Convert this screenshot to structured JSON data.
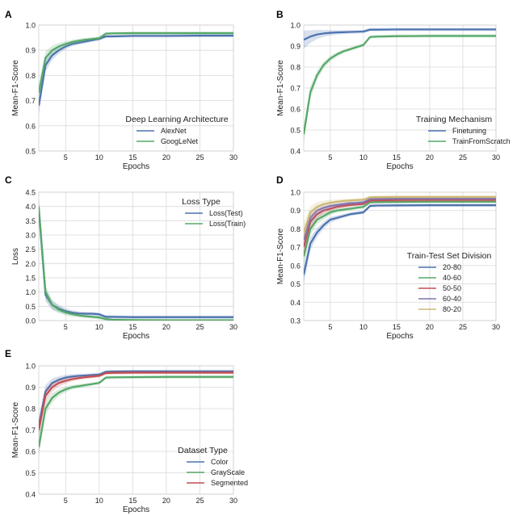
{
  "figure_title": "",
  "colors": {
    "blue": "#4c72b0",
    "green": "#55a868",
    "red": "#c44e52",
    "purple": "#8172b2",
    "gold": "#ccb974",
    "panel_bg": "#ffffff",
    "grid": "#d9d9d9",
    "axis_text": "#222222"
  },
  "chart_data": [
    {
      "panel_label": "A",
      "type": "line",
      "xlabel": "Epochs",
      "ylabel": "Mean-F1-Score",
      "xlim": [
        1,
        30
      ],
      "ylim": [
        0.5,
        1.0
      ],
      "xticks": [
        5,
        10,
        15,
        20,
        25,
        30
      ],
      "yticks": [
        0.5,
        0.6,
        0.7,
        0.8,
        0.9,
        1.0
      ],
      "grid": true,
      "legend_title": "Deep Learning Architecture",
      "legend_position": "bottom-right",
      "series": [
        {
          "name": "AlexNet",
          "color": "blue",
          "x": [
            1,
            2,
            3,
            4,
            5,
            6,
            7,
            8,
            9,
            10,
            11,
            12,
            15,
            20,
            25,
            30
          ],
          "y": [
            0.68,
            0.84,
            0.88,
            0.9,
            0.915,
            0.925,
            0.93,
            0.935,
            0.94,
            0.945,
            0.955,
            0.955,
            0.957,
            0.957,
            0.958,
            0.958
          ]
        },
        {
          "name": "GoogLeNet",
          "color": "green",
          "x": [
            1,
            2,
            3,
            4,
            5,
            6,
            7,
            8,
            9,
            10,
            11,
            12,
            15,
            20,
            25,
            30
          ],
          "y": [
            0.73,
            0.87,
            0.9,
            0.915,
            0.925,
            0.933,
            0.938,
            0.942,
            0.945,
            0.948,
            0.966,
            0.967,
            0.968,
            0.968,
            0.968,
            0.968
          ]
        }
      ]
    },
    {
      "panel_label": "B",
      "type": "line",
      "xlabel": "Epochs",
      "ylabel": "Mean-F1-Score",
      "xlim": [
        1,
        30
      ],
      "ylim": [
        0.4,
        1.0
      ],
      "xticks": [
        5,
        10,
        15,
        20,
        25,
        30
      ],
      "yticks": [
        0.4,
        0.5,
        0.6,
        0.7,
        0.8,
        0.9,
        1.0
      ],
      "grid": true,
      "legend_title": "Training Mechanism",
      "legend_position": "bottom-right",
      "series": [
        {
          "name": "Finetuning",
          "color": "blue",
          "x": [
            1,
            2,
            3,
            4,
            5,
            6,
            7,
            8,
            9,
            10,
            11,
            12,
            15,
            20,
            25,
            30
          ],
          "y": [
            0.93,
            0.945,
            0.955,
            0.96,
            0.963,
            0.965,
            0.966,
            0.967,
            0.968,
            0.969,
            0.978,
            0.978,
            0.979,
            0.979,
            0.979,
            0.979
          ]
        },
        {
          "name": "TrainFromScratch",
          "color": "green",
          "x": [
            1,
            2,
            3,
            4,
            5,
            6,
            7,
            8,
            9,
            10,
            11,
            12,
            15,
            20,
            25,
            30
          ],
          "y": [
            0.48,
            0.68,
            0.76,
            0.81,
            0.84,
            0.86,
            0.875,
            0.885,
            0.895,
            0.905,
            0.943,
            0.945,
            0.947,
            0.948,
            0.948,
            0.948
          ]
        }
      ]
    },
    {
      "panel_label": "C",
      "type": "line",
      "xlabel": "Epochs",
      "ylabel": "Loss",
      "xlim": [
        1,
        30
      ],
      "ylim": [
        0.0,
        4.5
      ],
      "xticks": [
        5,
        10,
        15,
        20,
        25,
        30
      ],
      "yticks": [
        0.0,
        0.5,
        1.0,
        1.5,
        2.0,
        2.5,
        3.0,
        3.5,
        4.0,
        4.5
      ],
      "grid": true,
      "legend_title": "Loss Type",
      "legend_position": "top-right",
      "series": [
        {
          "name": "Loss(Test)",
          "color": "blue",
          "x": [
            1,
            2,
            3,
            4,
            5,
            6,
            7,
            8,
            9,
            10,
            11,
            12,
            15,
            20,
            25,
            30
          ],
          "y": [
            3.9,
            0.9,
            0.55,
            0.42,
            0.33,
            0.28,
            0.25,
            0.24,
            0.24,
            0.22,
            0.13,
            0.13,
            0.12,
            0.12,
            0.12,
            0.12
          ]
        },
        {
          "name": "Loss(Train)",
          "color": "green",
          "x": [
            1,
            2,
            3,
            4,
            5,
            6,
            7,
            8,
            9,
            10,
            11,
            12,
            15,
            20,
            25,
            30
          ],
          "y": [
            4.0,
            1.0,
            0.55,
            0.38,
            0.28,
            0.22,
            0.18,
            0.15,
            0.13,
            0.11,
            0.05,
            0.03,
            0.02,
            0.01,
            0.01,
            0.01
          ]
        }
      ]
    },
    {
      "panel_label": "D",
      "type": "line",
      "xlabel": "Epochs",
      "ylabel": "Mean-F1-Score",
      "xlim": [
        1,
        30
      ],
      "ylim": [
        0.3,
        1.0
      ],
      "xticks": [
        5,
        10,
        15,
        20,
        25,
        30
      ],
      "yticks": [
        0.3,
        0.4,
        0.5,
        0.6,
        0.7,
        0.8,
        0.9,
        1.0
      ],
      "grid": true,
      "legend_title": "Train-Test Set Division",
      "legend_position": "center-right",
      "series": [
        {
          "name": "20-80",
          "color": "blue",
          "x": [
            1,
            2,
            3,
            4,
            5,
            6,
            7,
            8,
            9,
            10,
            11,
            12,
            15,
            20,
            25,
            30
          ],
          "y": [
            0.55,
            0.72,
            0.78,
            0.82,
            0.85,
            0.86,
            0.87,
            0.88,
            0.885,
            0.89,
            0.925,
            0.927,
            0.928,
            0.929,
            0.929,
            0.929
          ]
        },
        {
          "name": "40-60",
          "color": "green",
          "x": [
            1,
            2,
            3,
            4,
            5,
            6,
            7,
            8,
            9,
            10,
            11,
            12,
            15,
            20,
            25,
            30
          ],
          "y": [
            0.65,
            0.8,
            0.85,
            0.87,
            0.89,
            0.9,
            0.905,
            0.91,
            0.915,
            0.92,
            0.945,
            0.946,
            0.947,
            0.948,
            0.948,
            0.948
          ]
        },
        {
          "name": "50-50",
          "color": "red",
          "x": [
            1,
            2,
            3,
            4,
            5,
            6,
            7,
            8,
            9,
            10,
            11,
            12,
            15,
            20,
            25,
            30
          ],
          "y": [
            0.7,
            0.84,
            0.88,
            0.9,
            0.91,
            0.92,
            0.925,
            0.93,
            0.933,
            0.936,
            0.955,
            0.956,
            0.957,
            0.958,
            0.958,
            0.958
          ]
        },
        {
          "name": "60-40",
          "color": "purple",
          "x": [
            1,
            2,
            3,
            4,
            5,
            6,
            7,
            8,
            9,
            10,
            11,
            12,
            15,
            20,
            25,
            30
          ],
          "y": [
            0.74,
            0.86,
            0.9,
            0.915,
            0.925,
            0.93,
            0.935,
            0.94,
            0.942,
            0.945,
            0.963,
            0.964,
            0.965,
            0.965,
            0.965,
            0.965
          ]
        },
        {
          "name": "80-20",
          "color": "gold",
          "x": [
            1,
            2,
            3,
            4,
            5,
            6,
            7,
            8,
            9,
            10,
            11,
            12,
            15,
            20,
            25,
            30
          ],
          "y": [
            0.78,
            0.89,
            0.92,
            0.935,
            0.943,
            0.948,
            0.952,
            0.955,
            0.957,
            0.959,
            0.972,
            0.973,
            0.974,
            0.974,
            0.974,
            0.974
          ]
        }
      ]
    },
    {
      "panel_label": "E",
      "type": "line",
      "xlabel": "Epochs",
      "ylabel": "Mean-F1-Score",
      "xlim": [
        1,
        30
      ],
      "ylim": [
        0.4,
        1.0
      ],
      "xticks": [
        5,
        10,
        15,
        20,
        25,
        30
      ],
      "yticks": [
        0.4,
        0.5,
        0.6,
        0.7,
        0.8,
        0.9,
        1.0
      ],
      "grid": true,
      "legend_title": "Dataset Type",
      "legend_position": "bottom-right",
      "series": [
        {
          "name": "Color",
          "color": "blue",
          "x": [
            1,
            2,
            3,
            4,
            5,
            6,
            7,
            8,
            9,
            10,
            11,
            12,
            15,
            20,
            25,
            30
          ],
          "y": [
            0.72,
            0.88,
            0.92,
            0.935,
            0.945,
            0.95,
            0.953,
            0.955,
            0.957,
            0.959,
            0.972,
            0.973,
            0.974,
            0.974,
            0.974,
            0.974
          ]
        },
        {
          "name": "GrayScale",
          "color": "green",
          "x": [
            1,
            2,
            3,
            4,
            5,
            6,
            7,
            8,
            9,
            10,
            11,
            12,
            15,
            20,
            25,
            30
          ],
          "y": [
            0.62,
            0.8,
            0.85,
            0.875,
            0.89,
            0.9,
            0.905,
            0.91,
            0.915,
            0.92,
            0.945,
            0.946,
            0.947,
            0.948,
            0.948,
            0.948
          ]
        },
        {
          "name": "Segmented",
          "color": "red",
          "x": [
            1,
            2,
            3,
            4,
            5,
            6,
            7,
            8,
            9,
            10,
            11,
            12,
            15,
            20,
            25,
            30
          ],
          "y": [
            0.7,
            0.86,
            0.9,
            0.92,
            0.93,
            0.938,
            0.943,
            0.947,
            0.95,
            0.953,
            0.966,
            0.967,
            0.968,
            0.968,
            0.968,
            0.968
          ]
        }
      ]
    }
  ]
}
